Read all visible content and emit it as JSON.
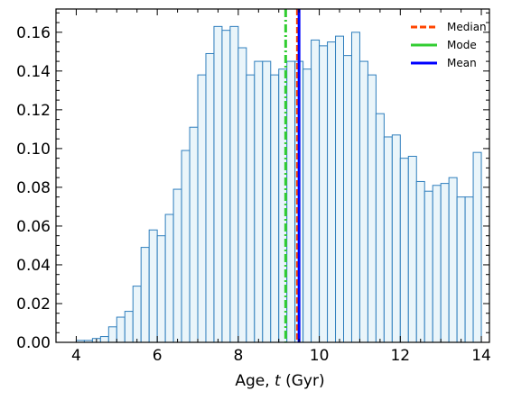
{
  "chart_data": {
    "type": "bar",
    "subtype": "histogram",
    "title": "",
    "xlabel_prefix": "Age, ",
    "xlabel_var": "t",
    "xlabel_suffix": " (Gyr)",
    "ylabel": "",
    "xlim": [
      3.5,
      14.2
    ],
    "ylim": [
      0,
      0.172
    ],
    "xticks": [
      4,
      6,
      8,
      10,
      12,
      14
    ],
    "xtick_labels": [
      "4",
      "6",
      "8",
      "10",
      "12",
      "14"
    ],
    "yticks": [
      0,
      0.02,
      0.04,
      0.06,
      0.08,
      0.1,
      0.12,
      0.14,
      0.16
    ],
    "ytick_labels": [
      "0.00",
      "0.02",
      "0.04",
      "0.06",
      "0.08",
      "0.10",
      "0.12",
      "0.14",
      "0.16"
    ],
    "grid": false,
    "legend_position": "top-right",
    "bin_start": 4.0,
    "bin_width": 0.2,
    "values": [
      0.001,
      0.001,
      0.002,
      0.003,
      0.008,
      0.013,
      0.016,
      0.029,
      0.049,
      0.058,
      0.055,
      0.066,
      0.079,
      0.099,
      0.111,
      0.138,
      0.149,
      0.163,
      0.161,
      0.163,
      0.152,
      0.138,
      0.145,
      0.145,
      0.138,
      0.141,
      0.145,
      0.145,
      0.141,
      0.156,
      0.153,
      0.155,
      0.158,
      0.148,
      0.16,
      0.145,
      0.138,
      0.118,
      0.106,
      0.107,
      0.095,
      0.096,
      0.083,
      0.078,
      0.081,
      0.082,
      0.085,
      0.075,
      0.075,
      0.098
    ],
    "bar_fill": "#eaf5fa",
    "bar_edge": "#2e7ebd",
    "vlines": [
      {
        "name": "Median",
        "x": 9.46,
        "color": "#ff4500",
        "style": "dashed"
      },
      {
        "name": "Mode",
        "x": 9.17,
        "color": "#32cd32",
        "style": "dashdot"
      },
      {
        "name": "Mean",
        "x": 9.5,
        "color": "#0000ff",
        "style": "solid"
      }
    ]
  }
}
